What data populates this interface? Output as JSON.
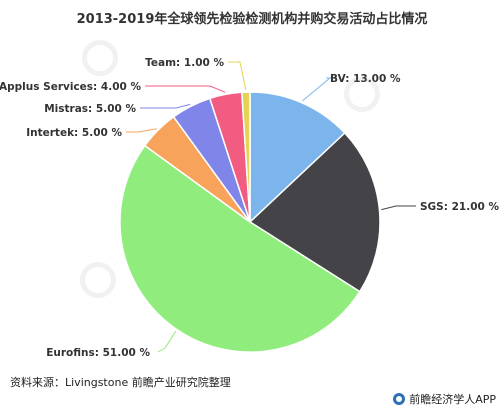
{
  "title": "2013-2019年全球领先检验检测机构并购交易活动占比情况",
  "source_note": "资料来源：Livingstone 前瞻产业研究院整理",
  "brand_label": "前瞻经济学人APP",
  "chart_data": {
    "type": "pie",
    "title": "2013-2019年全球领先检验检测机构并购交易活动占比情况",
    "unit": "%",
    "slices": [
      {
        "label": "BV",
        "value": 13.0,
        "display": "BV: 13.00 %",
        "color": "#7cb5ec"
      },
      {
        "label": "SGS",
        "value": 21.0,
        "display": "SGS: 21.00 %",
        "color": "#434348"
      },
      {
        "label": "Eurofins",
        "value": 51.0,
        "display": "Eurofins: 51.00 %",
        "color": "#90ed7d"
      },
      {
        "label": "Intertek",
        "value": 5.0,
        "display": "Intertek: 5.00 %",
        "color": "#f7a35c"
      },
      {
        "label": "Mistras",
        "value": 5.0,
        "display": "Mistras: 5.00 %",
        "color": "#8085e9"
      },
      {
        "label": "Applus Services",
        "value": 4.0,
        "display": "Applus Services: 4.00 %",
        "color": "#f15c80"
      },
      {
        "label": "Team",
        "value": 1.0,
        "display": "Team: 1.00 %",
        "color": "#e4d354"
      }
    ]
  }
}
